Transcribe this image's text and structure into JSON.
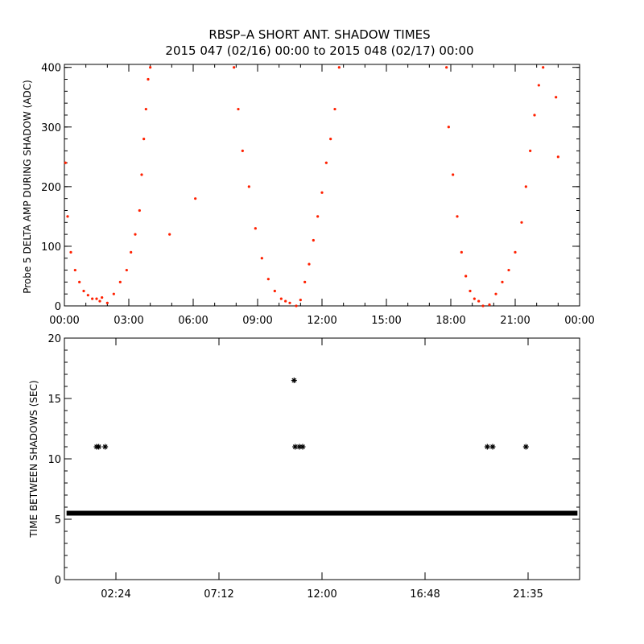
{
  "title": {
    "line1": "RBSP–A SHORT ANT. SHADOW TIMES",
    "line2": "2015 047 (02/16) 00:00 to 2015 048 (02/17) 00:00"
  },
  "colors": {
    "series_top": "#ff2000",
    "series_bottom": "#000000",
    "axes": "#000000"
  },
  "chart_data": [
    {
      "type": "scatter",
      "ylabel": "Probe 5 DELTA AMP DURING SHADOW (ADC)",
      "xlabel": "",
      "x_unit": "hours",
      "xlim": [
        0,
        24
      ],
      "ylim": [
        0,
        405
      ],
      "x_ticks": [
        0,
        3,
        6,
        9,
        12,
        15,
        18,
        21,
        24
      ],
      "x_tick_labels": [
        "00:00",
        "03:00",
        "06:00",
        "09:00",
        "12:00",
        "15:00",
        "18:00",
        "21:00",
        "00:00"
      ],
      "y_ticks": [
        0,
        100,
        200,
        300,
        400
      ],
      "y_tick_labels": [
        "0",
        "100",
        "200",
        "300",
        "400"
      ],
      "series": [
        {
          "marker": "dot",
          "x": [
            0.05,
            0.15,
            0.3,
            0.5,
            0.7,
            0.9,
            1.1,
            1.3,
            1.5,
            1.65,
            1.75,
            2.0,
            2.3,
            2.6,
            2.9,
            3.1,
            3.3,
            3.5,
            3.6,
            3.7,
            3.8,
            3.9,
            4.0,
            7.9,
            8.1,
            8.3,
            8.6,
            8.9,
            9.2,
            9.5,
            9.8,
            10.1,
            10.3,
            10.5,
            10.8,
            11.0,
            11.2,
            11.4,
            11.6,
            11.8,
            12.0,
            12.2,
            12.4,
            12.6,
            12.8,
            17.8,
            17.9,
            18.1,
            18.3,
            18.5,
            18.7,
            18.9,
            19.1,
            19.3,
            19.5,
            19.8,
            20.1,
            20.4,
            20.7,
            21.0,
            21.3,
            21.5,
            21.7,
            21.9,
            22.1,
            22.3,
            22.9,
            23.0,
            4.9,
            6.1
          ],
          "y": [
            240,
            150,
            90,
            60,
            40,
            25,
            18,
            12,
            12,
            8,
            14,
            5,
            20,
            40,
            60,
            90,
            120,
            160,
            220,
            280,
            330,
            380,
            400,
            400,
            330,
            260,
            200,
            130,
            80,
            45,
            25,
            12,
            8,
            5,
            0,
            10,
            40,
            70,
            110,
            150,
            190,
            240,
            280,
            330,
            400,
            400,
            300,
            220,
            150,
            90,
            50,
            25,
            12,
            8,
            0,
            2,
            20,
            40,
            60,
            90,
            140,
            200,
            260,
            320,
            370,
            400,
            350,
            250,
            120,
            180
          ]
        }
      ]
    },
    {
      "type": "scatter",
      "ylabel": "TIME BETWEEN SHADOWS (SEC)",
      "xlabel": "",
      "x_unit": "hours",
      "xlim": [
        0,
        24
      ],
      "ylim": [
        0,
        20
      ],
      "x_ticks": [
        2.4,
        7.2,
        12.0,
        16.8,
        21.6
      ],
      "x_tick_labels": [
        "02:24",
        "07:12",
        "12:00",
        "16:48",
        "21:35"
      ],
      "y_ticks": [
        0,
        5,
        10,
        15,
        20
      ],
      "y_tick_labels": [
        "0",
        "5",
        "10",
        "15",
        "20"
      ],
      "series": [
        {
          "marker": "asterisk",
          "baseline_value": 5.5,
          "baseline_range": [
            0.1,
            23.9
          ],
          "x": [
            1.5,
            1.6,
            1.9,
            10.7,
            10.75,
            10.95,
            11.1,
            19.7,
            19.95,
            21.5
          ],
          "y": [
            11.0,
            11.0,
            11.0,
            16.5,
            11.0,
            11.0,
            11.0,
            11.0,
            11.0,
            11.0
          ]
        }
      ]
    }
  ]
}
